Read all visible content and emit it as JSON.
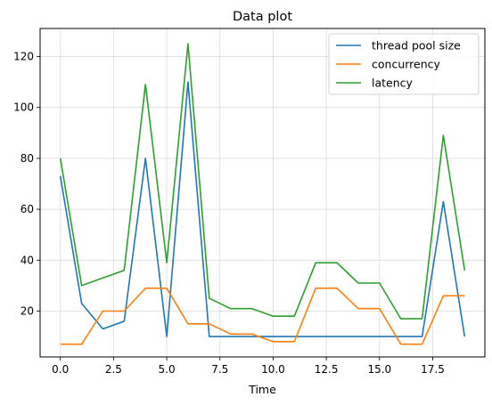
{
  "chart_data": {
    "type": "line",
    "title": "Data plot",
    "xlabel": "Time",
    "ylabel": "",
    "xlim": [
      -0.95,
      19.95
    ],
    "ylim": [
      2,
      131
    ],
    "xticks": [
      0.0,
      2.5,
      5.0,
      7.5,
      10.0,
      12.5,
      15.0,
      17.5
    ],
    "xtick_labels": [
      "0.0",
      "2.5",
      "5.0",
      "7.5",
      "10.0",
      "12.5",
      "15.0",
      "17.5"
    ],
    "yticks": [
      20,
      40,
      60,
      80,
      100,
      120
    ],
    "ytick_labels": [
      "20",
      "40",
      "60",
      "80",
      "100",
      "120"
    ],
    "grid": true,
    "legend_position": "top-right",
    "x": [
      0,
      1,
      2,
      3,
      4,
      5,
      6,
      7,
      8,
      9,
      10,
      11,
      12,
      13,
      14,
      15,
      16,
      17,
      18,
      19
    ],
    "series": [
      {
        "name": "thread pool size",
        "color": "#1f77b4",
        "values": [
          73,
          23,
          13,
          16,
          80,
          10,
          110,
          10,
          10,
          10,
          10,
          10,
          10,
          10,
          10,
          10,
          10,
          10,
          63,
          10
        ]
      },
      {
        "name": "concurrency",
        "color": "#ff7f0e",
        "values": [
          7,
          7,
          20,
          20,
          29,
          29,
          15,
          15,
          11,
          11,
          8,
          8,
          29,
          29,
          21,
          21,
          7,
          7,
          26,
          26
        ]
      },
      {
        "name": "latency",
        "color": "#2ca02c",
        "values": [
          80,
          30,
          33,
          36,
          109,
          39,
          125,
          25,
          21,
          21,
          18,
          18,
          39,
          39,
          31,
          31,
          17,
          17,
          89,
          36
        ]
      }
    ]
  }
}
